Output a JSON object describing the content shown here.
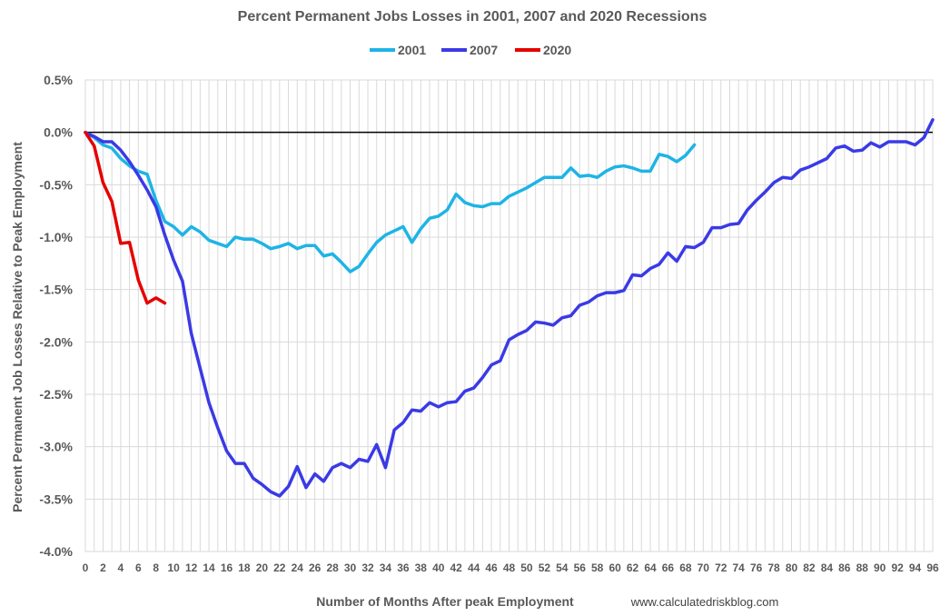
{
  "chart_data": {
    "type": "line",
    "title": "Percent Permanent Jobs Losses in 2001, 2007 and 2020 Recessions",
    "xlabel": "Number of Months After peak Employment",
    "ylabel": "Percent Permanent Job Losses Relative to Peak Employment",
    "source": "www.calculatedriskblog.com",
    "xlim": [
      0,
      96
    ],
    "ylim": [
      -4.0,
      0.5
    ],
    "y_ticks": [
      0.5,
      0.0,
      -0.5,
      -1.0,
      -1.5,
      -2.0,
      -2.5,
      -3.0,
      -3.5,
      -4.0
    ],
    "y_tick_labels": [
      "0.5%",
      "0.0%",
      "-0.5%",
      "-1.0%",
      "-1.5%",
      "-2.0%",
      "-2.5%",
      "-3.0%",
      "-3.5%",
      "-4.0%"
    ],
    "x_tick_labels": [
      "0",
      "2",
      "4",
      "6",
      "8",
      "10",
      "12",
      "14",
      "16",
      "18",
      "20",
      "22",
      "24",
      "26",
      "28",
      "30",
      "32",
      "34",
      "36",
      "38",
      "40",
      "42",
      "44",
      "46",
      "48",
      "50",
      "52",
      "54",
      "56",
      "58",
      "60",
      "62",
      "64",
      "66",
      "68",
      "70",
      "72",
      "74",
      "76",
      "78",
      "80",
      "82",
      "84",
      "86",
      "88",
      "90",
      "92",
      "94",
      "96"
    ],
    "grid": "vertical every month",
    "legend_position": "top",
    "series": [
      {
        "name": "2001",
        "color": "#1EB4E6",
        "values": [
          0,
          -0.05,
          -0.12,
          -0.15,
          -0.25,
          -0.32,
          -0.37,
          -0.4,
          -0.65,
          -0.85,
          -0.9,
          -0.98,
          -0.9,
          -0.95,
          -1.03,
          -1.06,
          -1.09,
          -1.0,
          -1.02,
          -1.02,
          -1.06,
          -1.11,
          -1.09,
          -1.06,
          -1.11,
          -1.08,
          -1.08,
          -1.18,
          -1.16,
          -1.24,
          -1.33,
          -1.28,
          -1.16,
          -1.05,
          -0.98,
          -0.94,
          -0.9,
          -1.05,
          -0.92,
          -0.82,
          -0.8,
          -0.74,
          -0.59,
          -0.67,
          -0.7,
          -0.71,
          -0.68,
          -0.68,
          -0.61,
          -0.57,
          -0.53,
          -0.48,
          -0.43,
          -0.43,
          -0.43,
          -0.34,
          -0.42,
          -0.41,
          -0.43,
          -0.37,
          -0.33,
          -0.32,
          -0.34,
          -0.37,
          -0.37,
          -0.21,
          -0.23,
          -0.28,
          -0.22,
          -0.12
        ]
      },
      {
        "name": "2007",
        "color": "#3A3AE6",
        "values": [
          0,
          -0.04,
          -0.09,
          -0.09,
          -0.17,
          -0.28,
          -0.41,
          -0.55,
          -0.71,
          -0.98,
          -1.22,
          -1.42,
          -1.92,
          -2.25,
          -2.58,
          -2.82,
          -3.04,
          -3.16,
          -3.16,
          -3.3,
          -3.36,
          -3.43,
          -3.47,
          -3.38,
          -3.19,
          -3.39,
          -3.26,
          -3.33,
          -3.2,
          -3.16,
          -3.2,
          -3.12,
          -3.14,
          -2.98,
          -3.2,
          -2.84,
          -2.77,
          -2.65,
          -2.66,
          -2.58,
          -2.62,
          -2.58,
          -2.57,
          -2.47,
          -2.44,
          -2.34,
          -2.22,
          -2.18,
          -1.98,
          -1.93,
          -1.89,
          -1.81,
          -1.82,
          -1.84,
          -1.77,
          -1.75,
          -1.65,
          -1.62,
          -1.56,
          -1.53,
          -1.53,
          -1.51,
          -1.36,
          -1.37,
          -1.3,
          -1.26,
          -1.15,
          -1.23,
          -1.09,
          -1.1,
          -1.05,
          -0.91,
          -0.91,
          -0.88,
          -0.87,
          -0.74,
          -0.65,
          -0.57,
          -0.48,
          -0.43,
          -0.44,
          -0.36,
          -0.33,
          -0.29,
          -0.25,
          -0.15,
          -0.13,
          -0.18,
          -0.17,
          -0.1,
          -0.14,
          -0.09,
          -0.09,
          -0.09,
          -0.12,
          -0.05,
          0.12
        ]
      },
      {
        "name": "2020",
        "color": "#E60000",
        "values": [
          0,
          -0.13,
          -0.48,
          -0.66,
          -1.06,
          -1.05,
          -1.41,
          -1.63,
          -1.58,
          -1.63
        ]
      }
    ]
  }
}
